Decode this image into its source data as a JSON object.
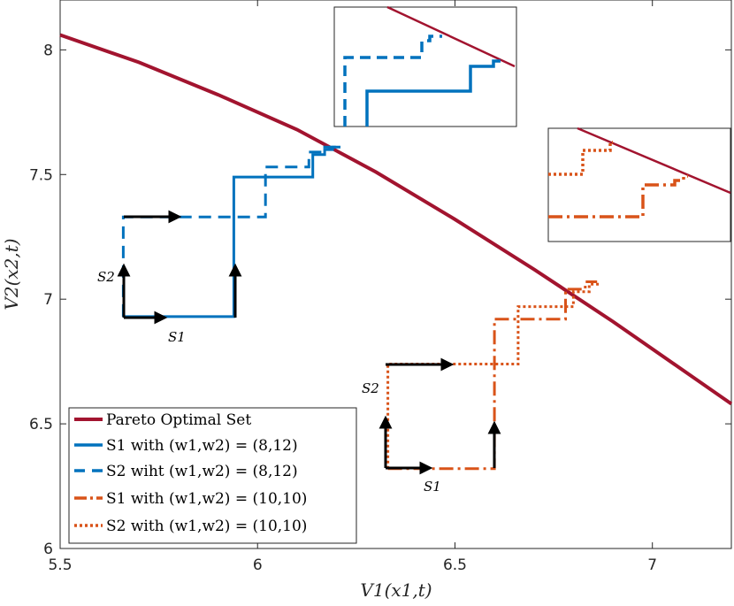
{
  "chart_data": {
    "type": "line",
    "xlabel": "V1(x1,t)",
    "ylabel": "V2(x2,t)",
    "xlim": [
      5.5,
      7.2
    ],
    "ylim": [
      6,
      8.2
    ],
    "xticks": [
      "5.5",
      "6",
      "6.5",
      "7"
    ],
    "yticks": [
      "6",
      "6.5",
      "7",
      "7.5",
      "8"
    ],
    "colors": {
      "pareto": "#A2142F",
      "blue": "#0072BD",
      "orange": "#D95319",
      "arrow": "#000000"
    },
    "legend": [
      "Pareto Optimal Set",
      "S1 with (w1,w2) = (8,12)",
      "S2 wiht (w1,w2) = (8,12)",
      "S1 with (w1,w2) = (10,10)",
      "S2 with (w1,w2) = (10,10)"
    ],
    "annotations": {
      "s1": "S1",
      "s2": "S2"
    },
    "series": [
      {
        "name": "Pareto Optimal Set",
        "x": [
          5.5,
          5.7,
          5.9,
          6.1,
          6.3,
          6.5,
          6.7,
          6.9,
          7.1,
          7.2
        ],
        "y": [
          8.06,
          7.95,
          7.82,
          7.68,
          7.51,
          7.32,
          7.12,
          6.91,
          6.69,
          6.58
        ]
      },
      {
        "name": "S1 with (w1,w2) = (8,12)",
        "x": [
          5.66,
          5.94,
          5.94,
          6.14,
          6.14,
          6.17,
          6.17,
          6.19,
          6.19,
          6.21
        ],
        "y": [
          6.93,
          6.93,
          7.49,
          7.49,
          7.58,
          7.58,
          7.6,
          7.6,
          7.61,
          7.61
        ]
      },
      {
        "name": "S2 wiht (w1,w2) = (8,12)",
        "x": [
          5.66,
          5.66,
          6.02,
          6.02,
          6.13,
          6.13,
          6.17,
          6.17,
          6.2
        ],
        "y": [
          6.93,
          7.33,
          7.33,
          7.53,
          7.53,
          7.59,
          7.59,
          7.61,
          7.61
        ]
      },
      {
        "name": "S1 with (w1,w2) = (10,10)",
        "x": [
          6.33,
          6.6,
          6.6,
          6.78,
          6.78,
          6.83,
          6.83,
          6.86
        ],
        "y": [
          6.32,
          6.32,
          6.92,
          6.92,
          7.04,
          7.04,
          7.07,
          7.07
        ]
      },
      {
        "name": "S2 with (w1,w2) = (10,10)",
        "x": [
          6.33,
          6.33,
          6.66,
          6.66,
          6.8,
          6.8,
          6.84,
          6.84,
          6.87
        ],
        "y": [
          6.32,
          6.74,
          6.74,
          6.97,
          6.97,
          7.03,
          7.03,
          7.06,
          7.06
        ]
      }
    ]
  }
}
